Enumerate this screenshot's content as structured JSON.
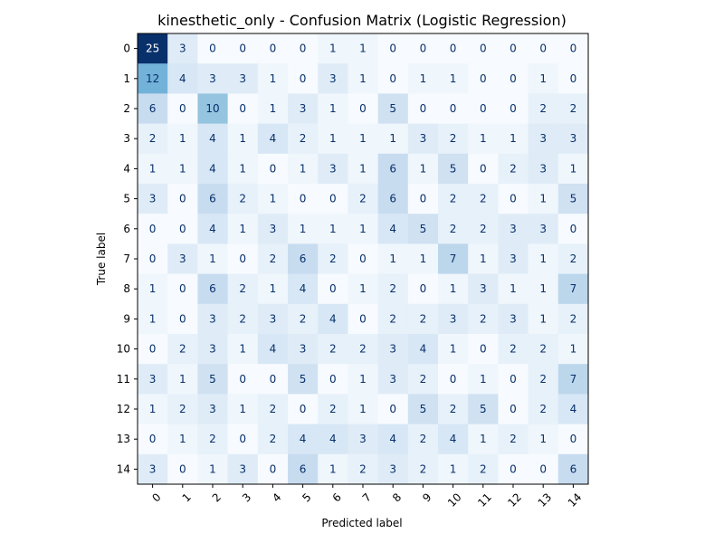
{
  "chart_data": {
    "type": "heatmap",
    "title": "kinesthetic_only - Confusion Matrix (Logistic Regression)",
    "xlabel": "Predicted label",
    "ylabel": "True label",
    "x_categories": [
      "0",
      "1",
      "2",
      "3",
      "4",
      "5",
      "6",
      "7",
      "8",
      "9",
      "10",
      "11",
      "12",
      "13",
      "14"
    ],
    "y_categories": [
      "0",
      "1",
      "2",
      "3",
      "4",
      "5",
      "6",
      "7",
      "8",
      "9",
      "10",
      "11",
      "12",
      "13",
      "14"
    ],
    "colormap": "Blues",
    "vmin": 0,
    "vmax": 25,
    "matrix": [
      [
        25,
        3,
        0,
        0,
        0,
        0,
        1,
        1,
        0,
        0,
        0,
        0,
        0,
        0,
        0
      ],
      [
        12,
        4,
        3,
        3,
        1,
        0,
        3,
        1,
        0,
        1,
        1,
        0,
        0,
        1,
        0
      ],
      [
        6,
        0,
        10,
        0,
        1,
        3,
        1,
        0,
        5,
        0,
        0,
        0,
        0,
        2,
        2
      ],
      [
        2,
        1,
        4,
        1,
        4,
        2,
        1,
        1,
        1,
        3,
        2,
        1,
        1,
        3,
        3
      ],
      [
        1,
        1,
        4,
        1,
        0,
        1,
        3,
        1,
        6,
        1,
        5,
        0,
        2,
        3,
        1
      ],
      [
        3,
        0,
        6,
        2,
        1,
        0,
        0,
        2,
        6,
        0,
        2,
        2,
        0,
        1,
        5
      ],
      [
        0,
        0,
        4,
        1,
        3,
        1,
        1,
        1,
        4,
        5,
        2,
        2,
        3,
        3,
        0
      ],
      [
        0,
        3,
        1,
        0,
        2,
        6,
        2,
        0,
        1,
        1,
        7,
        1,
        3,
        1,
        2
      ],
      [
        1,
        0,
        6,
        2,
        1,
        4,
        0,
        1,
        2,
        0,
        1,
        3,
        1,
        1,
        7
      ],
      [
        1,
        0,
        3,
        2,
        3,
        2,
        4,
        0,
        2,
        2,
        3,
        2,
        3,
        1,
        2
      ],
      [
        0,
        2,
        3,
        1,
        4,
        3,
        2,
        2,
        3,
        4,
        1,
        0,
        2,
        2,
        1
      ],
      [
        3,
        1,
        5,
        0,
        0,
        5,
        0,
        1,
        3,
        2,
        0,
        1,
        0,
        2,
        7
      ],
      [
        1,
        2,
        3,
        1,
        2,
        0,
        2,
        1,
        0,
        5,
        2,
        5,
        0,
        2,
        4
      ],
      [
        0,
        1,
        2,
        0,
        2,
        4,
        4,
        3,
        4,
        2,
        4,
        1,
        2,
        1,
        0
      ],
      [
        3,
        0,
        1,
        3,
        0,
        6,
        1,
        2,
        3,
        2,
        1,
        2,
        0,
        0,
        6
      ]
    ]
  }
}
